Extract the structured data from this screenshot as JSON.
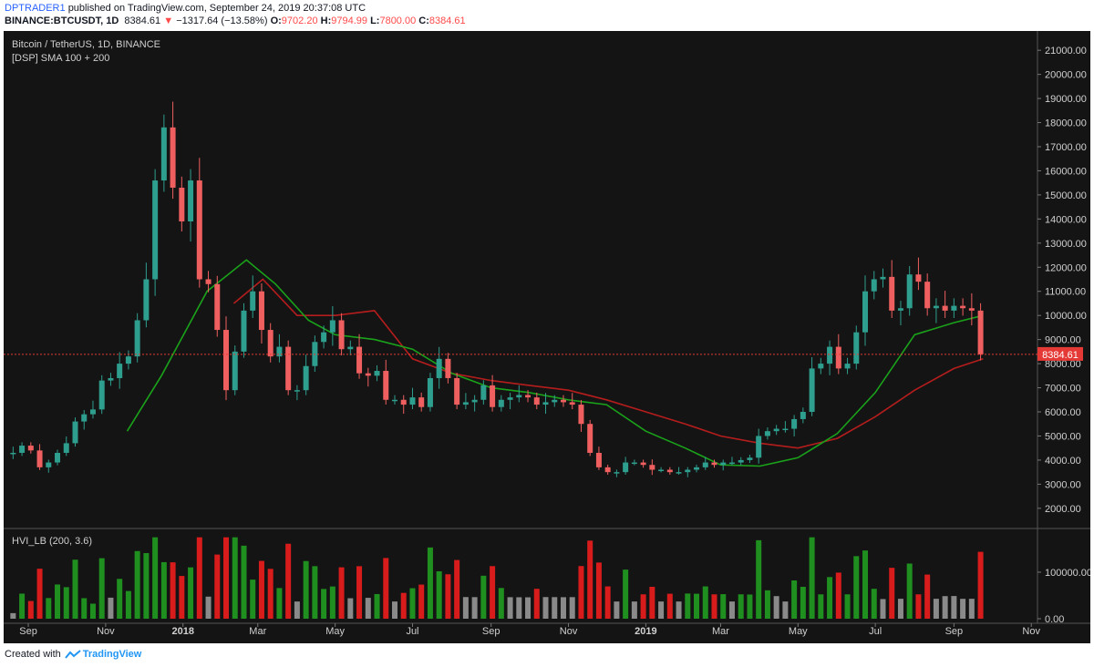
{
  "header": {
    "author": "DPTRADER1",
    "published_text": "published on TradingView.com, September 24, 2019 20:37:08 UTC",
    "symbol": "BINANCE:BTCUSDT, 1D",
    "last": "8384.61",
    "change_arrow": "▼",
    "change": "−1317.64 (−13.58%)",
    "o_label": "O:",
    "o_value": "9702.20",
    "h_label": "H:",
    "h_value": "9794.99",
    "l_label": "L:",
    "l_value": "7800.00",
    "c_label": "C:",
    "c_value": "8384.61"
  },
  "chart_title": "Bitcoin / TetherUS, 1D, BINANCE",
  "indicator_label": "[DSP] SMA 100 + 200",
  "volume_label": "HVI_LB (200, 3.6)",
  "price_tag": "8384.61",
  "footer": {
    "created_with": "Created with",
    "brand": "TradingView"
  },
  "colors": {
    "background": "#141414",
    "candle_up": "#2e9e8e",
    "candle_down": "#ef5f5f",
    "sma100": "#1aa21a",
    "sma200": "#b51d1d",
    "price_line": "#e53935",
    "volume_up": "#1f8f1f",
    "volume_down": "#d81b1b",
    "volume_neutral": "#8a8a8a"
  },
  "chart_data": {
    "type": "candlestick",
    "title": "Bitcoin / TetherUS, 1D, BINANCE",
    "price_axis_ticks": [
      "2000.00",
      "3000.00",
      "4000.00",
      "5000.00",
      "6000.00",
      "7000.00",
      "8000.00",
      "9000.00",
      "10000.00",
      "11000.00",
      "12000.00",
      "13000.00",
      "14000.00",
      "15000.00",
      "16000.00",
      "17000.00",
      "18000.00",
      "19000.00",
      "20000.00",
      "21000.00"
    ],
    "ylim": [
      1200,
      21800
    ],
    "volume_axis_ticks": [
      "0.00",
      "100000.00"
    ],
    "time_axis_labels": [
      "Sep",
      "Nov",
      "2018",
      "Mar",
      "May",
      "Jul",
      "Sep",
      "Nov",
      "2019",
      "Mar",
      "May",
      "Jul",
      "Sep",
      "Nov"
    ],
    "last_close": 8384.61,
    "series": [
      {
        "name": "Bitcoin / TetherUS (approx. weekly close)",
        "x": [
          "2017-08-20",
          "2017-08-27",
          "2017-09-03",
          "2017-09-10",
          "2017-09-17",
          "2017-09-24",
          "2017-10-01",
          "2017-10-08",
          "2017-10-15",
          "2017-10-22",
          "2017-10-29",
          "2017-11-05",
          "2017-11-12",
          "2017-11-19",
          "2017-11-26",
          "2017-12-03",
          "2017-12-10",
          "2017-12-17",
          "2017-12-24",
          "2017-12-31",
          "2018-01-07",
          "2018-01-14",
          "2018-01-21",
          "2018-01-28",
          "2018-02-04",
          "2018-02-11",
          "2018-02-18",
          "2018-02-25",
          "2018-03-04",
          "2018-03-11",
          "2018-03-18",
          "2018-03-25",
          "2018-04-01",
          "2018-04-08",
          "2018-04-15",
          "2018-04-22",
          "2018-04-29",
          "2018-05-06",
          "2018-05-13",
          "2018-05-20",
          "2018-05-27",
          "2018-06-03",
          "2018-06-10",
          "2018-06-17",
          "2018-06-24",
          "2018-07-01",
          "2018-07-08",
          "2018-07-15",
          "2018-07-22",
          "2018-07-29",
          "2018-08-05",
          "2018-08-12",
          "2018-08-19",
          "2018-08-26",
          "2018-09-02",
          "2018-09-09",
          "2018-09-16",
          "2018-09-23",
          "2018-09-30",
          "2018-10-07",
          "2018-10-14",
          "2018-10-21",
          "2018-10-28",
          "2018-11-04",
          "2018-11-11",
          "2018-11-18",
          "2018-11-25",
          "2018-12-02",
          "2018-12-09",
          "2018-12-16",
          "2018-12-23",
          "2018-12-30",
          "2019-01-06",
          "2019-01-13",
          "2019-01-20",
          "2019-01-27",
          "2019-02-03",
          "2019-02-10",
          "2019-02-17",
          "2019-02-24",
          "2019-03-03",
          "2019-03-10",
          "2019-03-17",
          "2019-03-24",
          "2019-03-31",
          "2019-04-07",
          "2019-04-14",
          "2019-04-21",
          "2019-04-28",
          "2019-05-05",
          "2019-05-12",
          "2019-05-19",
          "2019-05-26",
          "2019-06-02",
          "2019-06-09",
          "2019-06-16",
          "2019-06-23",
          "2019-06-30",
          "2019-07-07",
          "2019-07-14",
          "2019-07-21",
          "2019-07-28",
          "2019-08-04",
          "2019-08-11",
          "2019-08-18",
          "2019-08-25",
          "2019-09-01",
          "2019-09-08",
          "2019-09-15",
          "2019-09-22"
        ],
        "values": [
          4300,
          4600,
          4400,
          3700,
          3900,
          4300,
          4700,
          5600,
          5900,
          6100,
          7300,
          7400,
          8000,
          8300,
          9800,
          11500,
          15600,
          17800,
          15300,
          13900,
          15600,
          11500,
          11300,
          9400,
          6900,
          8500,
          10200,
          11000,
          9400,
          8300,
          8700,
          6900,
          6900,
          7900,
          8900,
          9300,
          9800,
          8600,
          8700,
          7600,
          7500,
          7700,
          6500,
          6500,
          6300,
          6600,
          6200,
          7400,
          8200,
          7400,
          6300,
          6400,
          6500,
          7100,
          6200,
          6500,
          6600,
          6700,
          6600,
          6300,
          6400,
          6500,
          6400,
          6300,
          5500,
          4300,
          3700,
          3500,
          3500,
          3900,
          3900,
          3800,
          3600,
          3600,
          3500,
          3500,
          3600,
          3700,
          3900,
          3800,
          3900,
          3900,
          4000,
          4100,
          5000,
          5200,
          5300,
          5300,
          5700,
          6000,
          7800,
          8000,
          8700,
          7800,
          8000,
          9300,
          11000,
          11500,
          11600,
          10200,
          10300,
          11700,
          11400,
          10300,
          10400,
          10200,
          10400,
          10300,
          10200,
          8384.61
        ]
      },
      {
        "name": "SMA 100",
        "x": [
          "2017-11-18",
          "2017-12-15",
          "2018-01-20",
          "2018-02-20",
          "2018-03-15",
          "2018-04-10",
          "2018-05-01",
          "2018-06-01",
          "2018-07-01",
          "2018-08-01",
          "2018-09-01",
          "2018-10-01",
          "2018-11-01",
          "2018-12-01",
          "2019-01-01",
          "2019-02-01",
          "2019-03-01",
          "2019-04-01",
          "2019-05-01",
          "2019-06-01",
          "2019-07-01",
          "2019-08-01",
          "2019-09-01",
          "2019-09-24"
        ],
        "values": [
          5200,
          7500,
          11000,
          12300,
          11300,
          9800,
          9200,
          9000,
          8600,
          7600,
          7000,
          6800,
          6500,
          6300,
          5200,
          4500,
          3800,
          3750,
          4100,
          5100,
          6800,
          9200,
          9700,
          10000
        ]
      },
      {
        "name": "SMA 200",
        "x": [
          "2018-02-10",
          "2018-03-05",
          "2018-04-01",
          "2018-05-01",
          "2018-06-01",
          "2018-07-01",
          "2018-08-01",
          "2018-09-01",
          "2018-10-01",
          "2018-11-01",
          "2018-12-01",
          "2019-01-01",
          "2019-02-01",
          "2019-03-01",
          "2019-04-01",
          "2019-05-01",
          "2019-06-01",
          "2019-07-01",
          "2019-08-01",
          "2019-09-01",
          "2019-09-24"
        ],
        "values": [
          10500,
          11500,
          10000,
          10000,
          10200,
          8200,
          7600,
          7300,
          7100,
          6900,
          6500,
          6000,
          5500,
          5000,
          4700,
          4500,
          4900,
          5800,
          6900,
          7800,
          8200
        ]
      }
    ]
  }
}
